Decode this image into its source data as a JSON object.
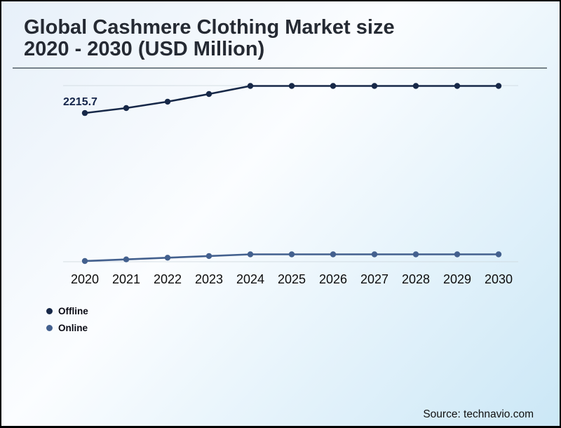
{
  "header": {
    "title_line1": "Global Cashmere Clothing Market size",
    "title_line2": "2020 - 2030 (USD Million)"
  },
  "footer": {
    "source": "Source: technavio.com"
  },
  "legend": {
    "position": "bottom-left",
    "items": [
      {
        "label": "Offline",
        "color": "#172848"
      },
      {
        "label": "Online",
        "color": "#43608e"
      }
    ]
  },
  "chart_data": {
    "type": "line",
    "title": "Global Cashmere Clothing Market size 2020 - 2030 (USD Million)",
    "categories": [
      "2020",
      "2021",
      "2022",
      "2023",
      "2024",
      "2025",
      "2026",
      "2027",
      "2028",
      "2029",
      "2030"
    ],
    "series": [
      {
        "name": "Offline",
        "color": "#172848",
        "values": [
          2215.7,
          2290,
          2385,
          2500,
          2620,
          2620,
          2620,
          2620,
          2620,
          2620,
          2620
        ]
      },
      {
        "name": "Online",
        "color": "#43608e",
        "values": [
          10,
          35,
          60,
          85,
          110,
          110,
          110,
          110,
          110,
          110,
          110
        ]
      }
    ],
    "annotations": [
      {
        "text": "2215.7",
        "series": "Offline",
        "category": "2020"
      }
    ],
    "note": "Only the 2020 Offline value (2215.7) is labeled; all other values estimated from plotted positions",
    "xlabel": "",
    "ylabel": "",
    "ylim": [
      0,
      2625
    ],
    "y_axis_visible": false,
    "gridlines": "faint horizontal lines at plot top and bottom only",
    "grid_color": "#ccd5db",
    "legend_position": "bottom-left"
  },
  "colors": {
    "background_gradient_start": "#e7f0f9",
    "background_gradient_end": "#cbe7f6",
    "title_text": "#252a33",
    "title_rule": "#76828a",
    "border": "#000000",
    "axis_text": "#0d0d0d",
    "data_label": "#14254a"
  }
}
